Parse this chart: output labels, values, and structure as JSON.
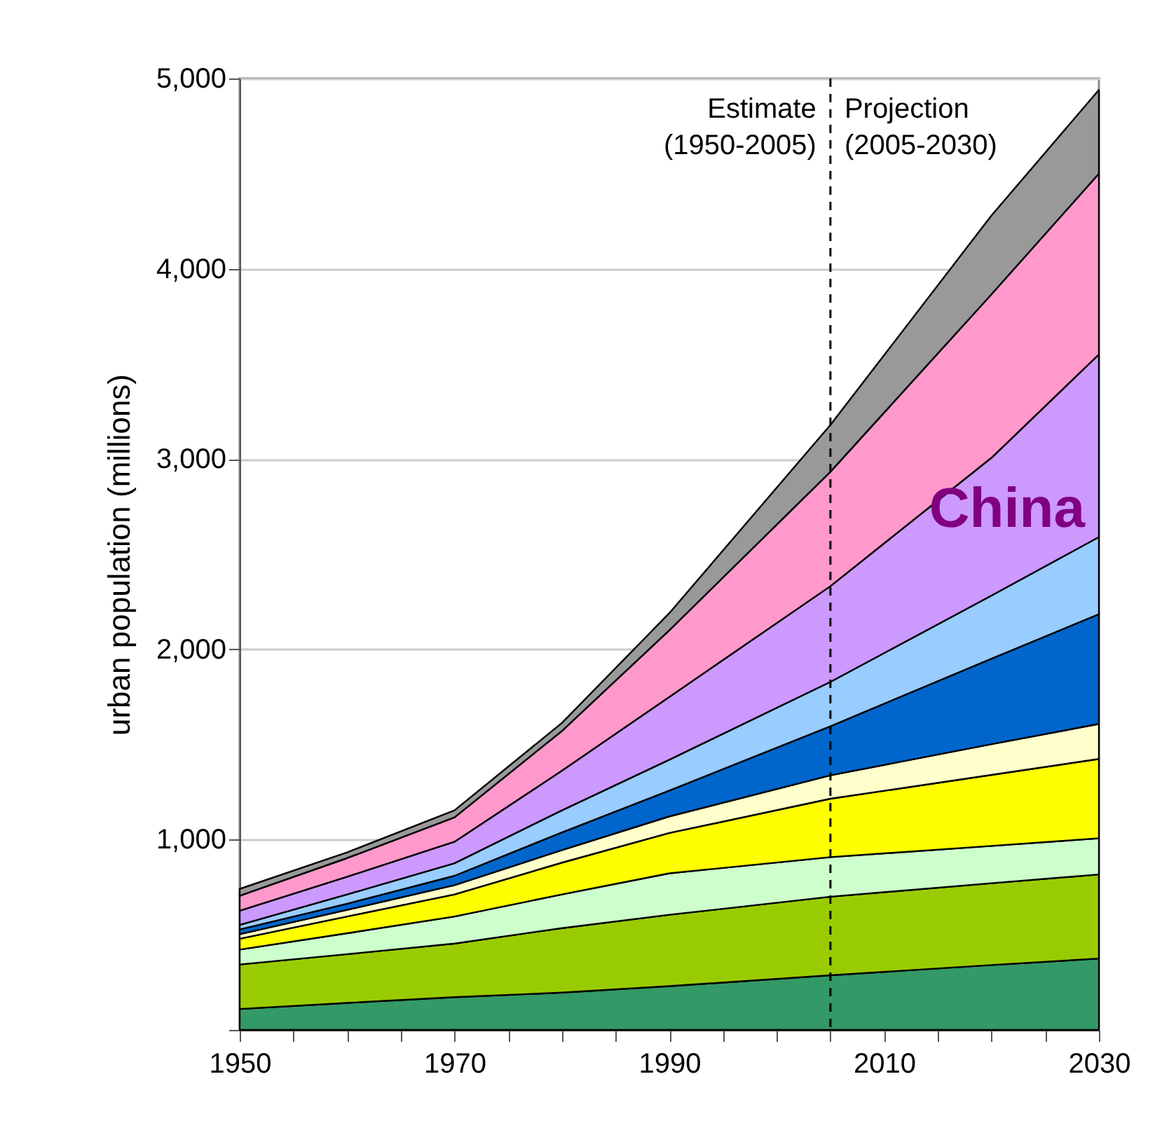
{
  "chart_data": {
    "type": "area",
    "stacked": true,
    "ylabel": "urban population (millions)",
    "x": [
      1950,
      1960,
      1970,
      1980,
      1990,
      2005,
      2020,
      2030
    ],
    "xlim": [
      1950,
      2030
    ],
    "xticks": [
      1950,
      {
        "value": 1955,
        "label": null
      },
      {
        "value": 1960,
        "label": null
      },
      {
        "value": 1965,
        "label": null
      },
      1970,
      {
        "value": 1975,
        "label": null
      },
      {
        "value": 1980,
        "label": null
      },
      {
        "value": 1985,
        "label": null
      },
      1990,
      {
        "value": 1995,
        "label": null
      },
      {
        "value": 2000,
        "label": null
      },
      {
        "value": 2005,
        "label": null
      },
      2010,
      {
        "value": 2015,
        "label": null
      },
      {
        "value": 2020,
        "label": null
      },
      {
        "value": 2025,
        "label": null
      },
      2030
    ],
    "ylim": [
      0,
      5000
    ],
    "yticks": [
      {
        "value": 0,
        "label": null
      },
      {
        "value": 1000,
        "label": "1,000"
      },
      {
        "value": 2000,
        "label": "2,000"
      },
      {
        "value": 3000,
        "label": "3,000"
      },
      {
        "value": 4000,
        "label": "4,000"
      },
      {
        "value": 5000,
        "label": "5,000"
      }
    ],
    "grid": "y",
    "series": [
      {
        "color": "#339966",
        "values": [
          110,
          142,
          172,
          196,
          230,
          287,
          341,
          375
        ]
      },
      {
        "color": "#99cc00",
        "values": [
          234,
          256,
          282,
          339,
          375,
          413,
          430,
          442
        ]
      },
      {
        "color": "#ccffcc",
        "values": [
          78,
          110,
          142,
          177,
          218,
          208,
          196,
          190
        ]
      },
      {
        "color": "#ffff00",
        "values": [
          57,
          88,
          116,
          167,
          212,
          307,
          373,
          417
        ]
      },
      {
        "color": "#ffffcc",
        "values": [
          24,
          35,
          49,
          66,
          87,
          123,
          162,
          184
        ]
      },
      {
        "color": "#0066cc",
        "values": [
          25,
          32,
          49,
          93,
          136,
          258,
          449,
          577
        ]
      },
      {
        "color": "#99ccff",
        "values": [
          24,
          49,
          66,
          116,
          162,
          233,
          332,
          405
        ]
      },
      {
        "name": "China",
        "color": "#cc99ff",
        "values": [
          74,
          93,
          113,
          208,
          330,
          503,
          724,
          960
        ]
      },
      {
        "color": "#ff99cc",
        "values": [
          79,
          98,
          128,
          209,
          350,
          601,
          859,
          950
        ]
      },
      {
        "color": "#999999",
        "values": [
          36,
          30,
          37,
          42,
          90,
          246,
          414,
          440
        ]
      }
    ],
    "ref_lines": [
      {
        "axis": "x",
        "value": 2005,
        "line_style": "dashed"
      }
    ],
    "annotations": [
      "Estimate",
      "(1950-2005)",
      "Projection",
      "(2005-2030)"
    ]
  }
}
